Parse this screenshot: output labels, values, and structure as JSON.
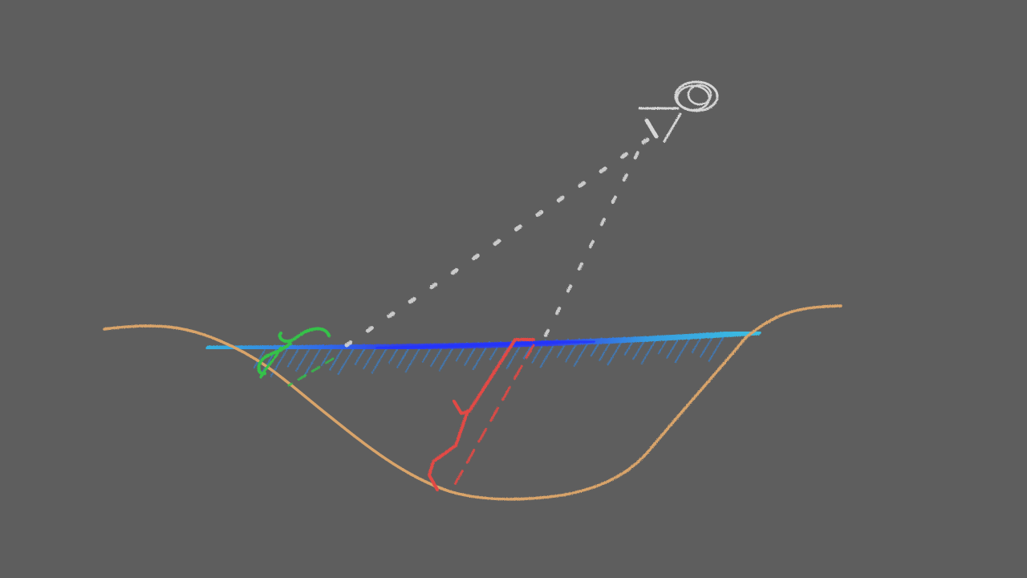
{
  "scene": {
    "background_color": "#5e5e5e",
    "elements": {
      "terrain": {
        "color": "#d9a46a"
      },
      "water_surface": {
        "color_deep": "#2f3cf0",
        "color_shallow": "#35b6e6"
      },
      "water_hatching": {
        "color": "#3a7fc8"
      },
      "sun": {
        "color": "#d6d6d6",
        "icon": "sun-icon"
      },
      "incoming_ray": {
        "color": "#d6d6d6"
      },
      "refracted_ray": {
        "color": "#e24a45"
      },
      "dashed_extension": {
        "color": "#e24a45"
      },
      "plant": {
        "color": "#35c24a",
        "icon": "plant-icon"
      }
    }
  }
}
